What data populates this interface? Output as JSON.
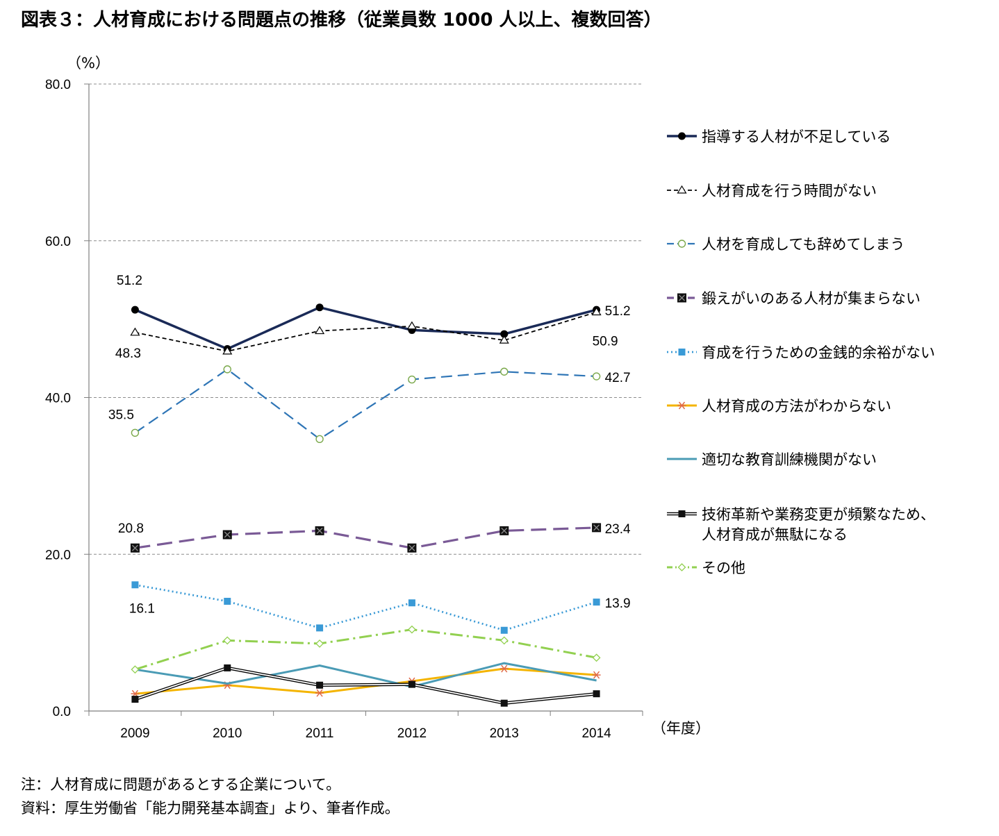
{
  "title": "図表３：人材育成における問題点の推移（従業員数 1000 人以上、複数回答）",
  "notes": {
    "note": "注：人材育成に問題があるとする企業について。",
    "source": "資料：厚生労働省「能力開発基本調査」より、筆者作成。"
  },
  "chart_data": {
    "type": "line",
    "y_unit_label": "（%）",
    "x_unit_label": "（年度）",
    "ylim": [
      0,
      80
    ],
    "y_ticks": [
      "0.0",
      "20.0",
      "40.0",
      "60.0",
      "80.0"
    ],
    "y_tick_values": [
      0,
      20,
      40,
      60,
      80
    ],
    "categories": [
      "2009",
      "2010",
      "2011",
      "2012",
      "2013",
      "2014"
    ],
    "grid": "horizontal dashed",
    "legend_position": "right",
    "series": [
      {
        "name": "指導する人材が不足している",
        "values": [
          51.2,
          46.2,
          51.5,
          48.6,
          48.1,
          51.2
        ],
        "color": "#1a2a57",
        "dash": "",
        "width": 3.5,
        "marker": "circle-filled",
        "labels": {
          "0": "51.2",
          "5": "51.2"
        }
      },
      {
        "name": "人材育成を行う時間がない",
        "values": [
          48.3,
          45.9,
          48.5,
          49.1,
          47.3,
          50.9
        ],
        "color": "#000000",
        "dash": "6,4",
        "width": 1.8,
        "marker": "triangle-open",
        "labels": {
          "0": "48.3",
          "5": "50.9"
        }
      },
      {
        "name": "人材を育成しても辞めてしまう",
        "values": [
          35.5,
          43.6,
          34.7,
          42.3,
          43.3,
          42.7
        ],
        "color": "#2e75b6",
        "dash": "16,8",
        "width": 2.2,
        "marker": "circle-open",
        "labels": {
          "0": "35.5",
          "5": "42.7"
        }
      },
      {
        "name": "鍛えがいのある人材が集まらない",
        "values": [
          20.8,
          22.5,
          23.0,
          20.8,
          23.0,
          23.4
        ],
        "color": "#7a5a96",
        "dash": "22,10",
        "width": 3.2,
        "marker": "square-x",
        "labels": {
          "0": "20.8",
          "5": "23.4"
        }
      },
      {
        "name": "育成を行うための金銭的余裕がない",
        "values": [
          16.1,
          14.0,
          10.6,
          13.8,
          10.3,
          13.9
        ],
        "color": "#3a9ad6",
        "dash": "2,4",
        "width": 2.8,
        "marker": "square-filled",
        "labels": {
          "0": "16.1",
          "5": "13.9"
        }
      },
      {
        "name": "人材育成の方法がわからない",
        "values": [
          2.2,
          3.3,
          2.3,
          3.8,
          5.4,
          4.6
        ],
        "color": "#f4b400",
        "dash": "",
        "width": 3,
        "marker": "asterisk",
        "labels": {}
      },
      {
        "name": "適切な教育訓練機関がない",
        "values": [
          5.3,
          3.5,
          5.8,
          3.1,
          6.1,
          3.9
        ],
        "color": "#4a9bb5",
        "dash": "",
        "width": 3,
        "marker": "none",
        "labels": {}
      },
      {
        "name": "技術革新や業務変更が頻繁なため、人材育成が無駄になる",
        "legend_lines": [
          "技術革新や業務変更が頻繁なため、",
          "人材育成が無駄になる"
        ],
        "values": [
          1.5,
          5.5,
          3.3,
          3.4,
          1.0,
          2.2
        ],
        "color": "#000000",
        "dash": "",
        "width": 1.5,
        "marker": "square-filled-double",
        "labels": {}
      },
      {
        "name": "その他",
        "values": [
          5.3,
          9.0,
          8.6,
          10.4,
          9.0,
          6.8
        ],
        "color": "#92d050",
        "dash": "18,6,3,6",
        "width": 3,
        "marker": "diamond-open",
        "labels": {}
      }
    ]
  }
}
